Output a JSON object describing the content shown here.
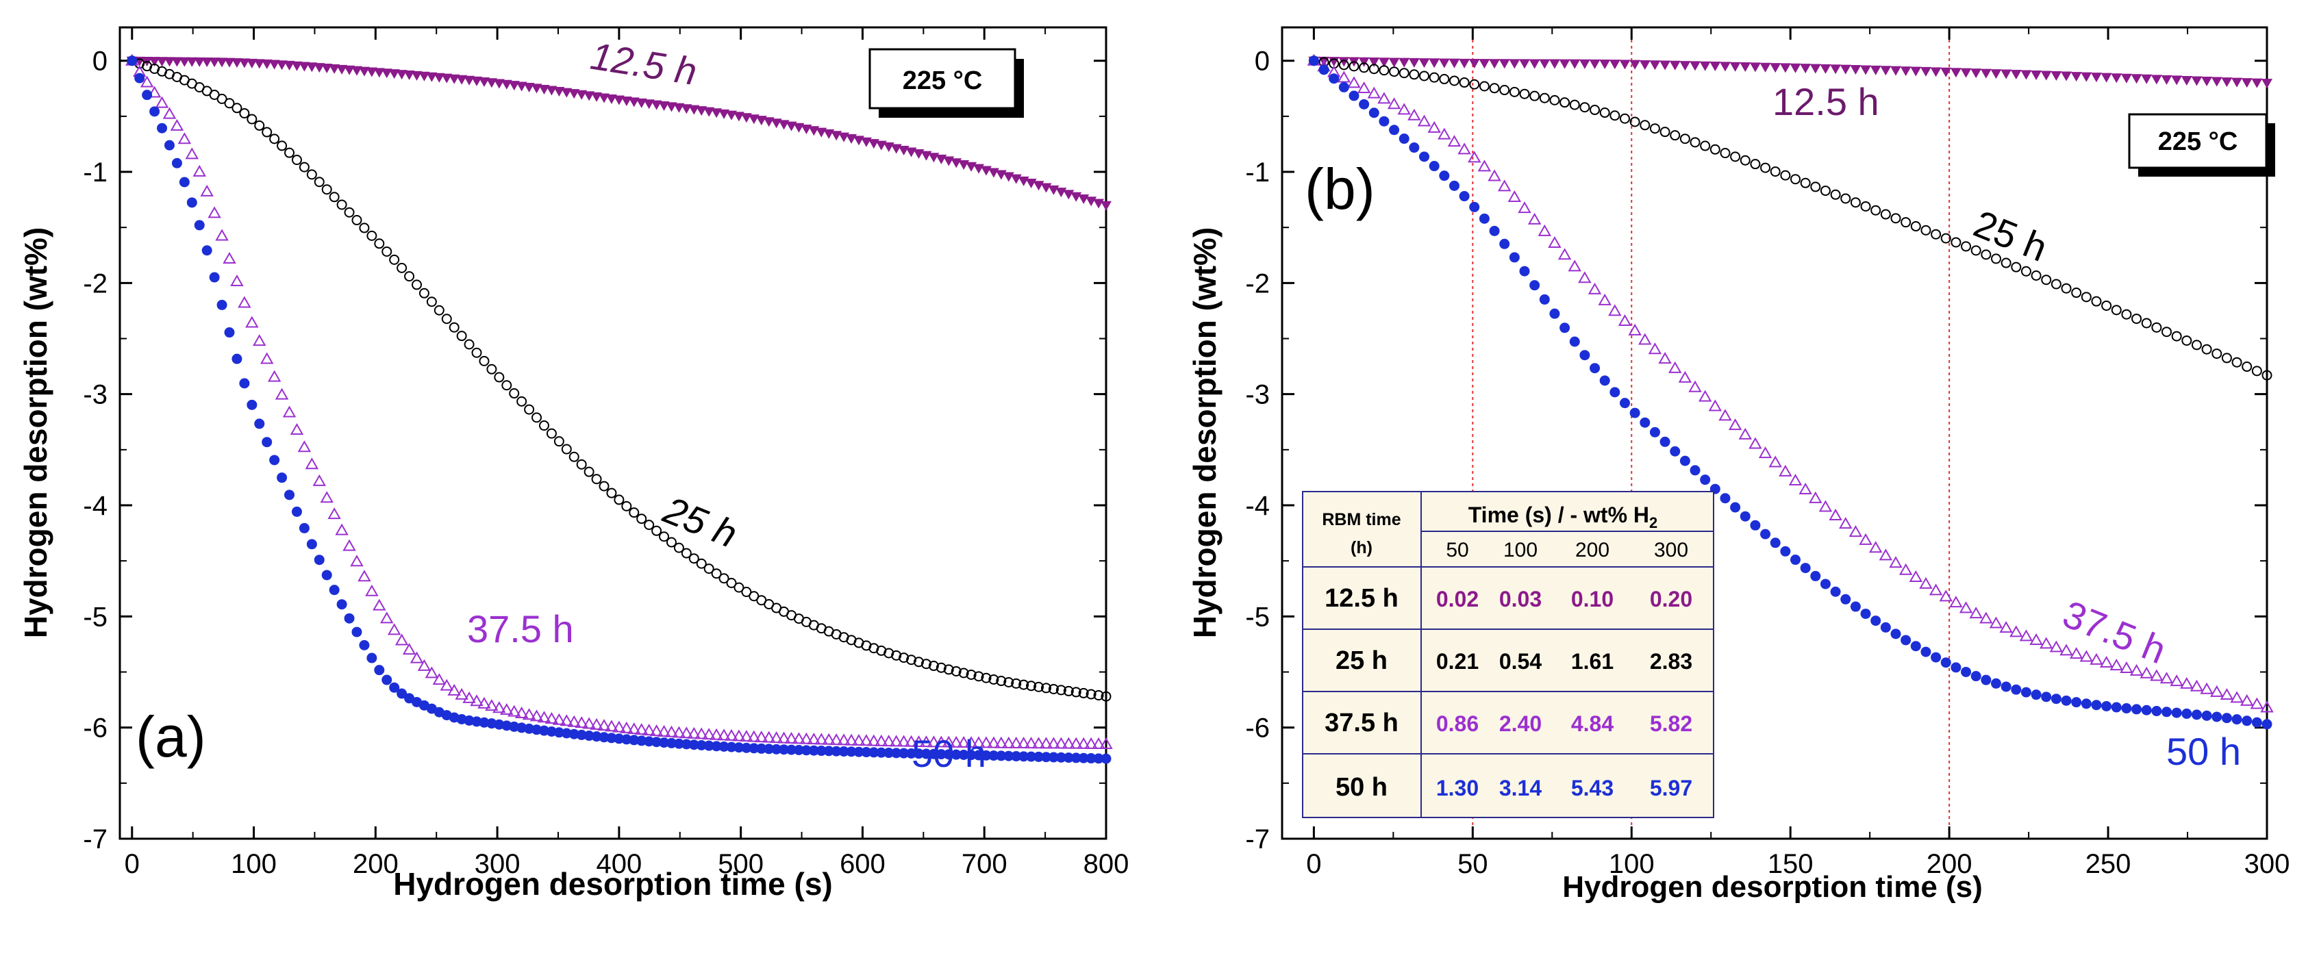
{
  "chart_data": [
    {
      "type": "scatter",
      "panel_label": "(a)",
      "xlabel": "Hydrogen desorption time (s)",
      "ylabel": "Hydrogen desorption (wt%)",
      "xlim": [
        -10,
        800
      ],
      "ylim": [
        -7,
        0.3
      ],
      "xticks": [
        0,
        100,
        200,
        300,
        400,
        500,
        600,
        700,
        800
      ],
      "yticks": [
        0,
        -1,
        -2,
        -3,
        -4,
        -5,
        -6,
        -7
      ],
      "temperature_label": "225 °C",
      "series": [
        {
          "name": "12.5 h",
          "marker": "triangle-down-filled",
          "color": "#8B1A8B",
          "points": [
            [
              0,
              0
            ],
            [
              100,
              -0.02
            ],
            [
              200,
              -0.1
            ],
            [
              300,
              -0.2
            ],
            [
              400,
              -0.35
            ],
            [
              500,
              -0.5
            ],
            [
              600,
              -0.72
            ],
            [
              700,
              -0.98
            ],
            [
              800,
              -1.3
            ]
          ]
        },
        {
          "name": "25 h",
          "marker": "circle-open",
          "color": "#000000",
          "points": [
            [
              0,
              0
            ],
            [
              50,
              -0.21
            ],
            [
              100,
              -0.54
            ],
            [
              200,
              -1.61
            ],
            [
              300,
              -2.83
            ],
            [
              400,
              -3.95
            ],
            [
              500,
              -4.75
            ],
            [
              600,
              -5.25
            ],
            [
              700,
              -5.55
            ],
            [
              800,
              -5.72
            ]
          ]
        },
        {
          "name": "37.5 h",
          "marker": "triangle-up-open",
          "color": "#9B30D0",
          "points": [
            [
              0,
              0
            ],
            [
              50,
              -0.86
            ],
            [
              100,
              -2.4
            ],
            [
              200,
              -4.84
            ],
            [
              250,
              -5.55
            ],
            [
              300,
              -5.82
            ],
            [
              400,
              -6.0
            ],
            [
              500,
              -6.08
            ],
            [
              600,
              -6.12
            ],
            [
              700,
              -6.14
            ],
            [
              800,
              -6.15
            ]
          ]
        },
        {
          "name": "50 h",
          "marker": "circle-filled",
          "color": "#1C2FD6",
          "points": [
            [
              0,
              0
            ],
            [
              50,
              -1.3
            ],
            [
              100,
              -3.14
            ],
            [
              200,
              -5.43
            ],
            [
              250,
              -5.85
            ],
            [
              300,
              -5.97
            ],
            [
              400,
              -6.1
            ],
            [
              500,
              -6.18
            ],
            [
              600,
              -6.22
            ],
            [
              700,
              -6.25
            ],
            [
              800,
              -6.28
            ]
          ]
        }
      ],
      "annotations": [
        {
          "text": "12.5 h",
          "color": "#6B1A6B"
        },
        {
          "text": "25 h",
          "color": "#000000"
        },
        {
          "text": "37.5 h",
          "color": "#9B30D0"
        },
        {
          "text": "50 h",
          "color": "#1C2FD6"
        }
      ]
    },
    {
      "type": "scatter",
      "panel_label": "(b)",
      "xlabel": "Hydrogen desorption time (s)",
      "ylabel": "Hydrogen desorption (wt%)",
      "xlim": [
        -10,
        300
      ],
      "ylim": [
        -7,
        0.3
      ],
      "xticks": [
        0,
        50,
        100,
        150,
        200,
        250,
        300
      ],
      "yticks": [
        0,
        -1,
        -2,
        -3,
        -4,
        -5,
        -6,
        -7
      ],
      "temperature_label": "225 °C",
      "reference_lines_x": [
        50,
        100,
        200
      ],
      "series": [
        {
          "name": "12.5 h",
          "marker": "triangle-down-filled",
          "color": "#8B1A8B",
          "points": [
            [
              0,
              0
            ],
            [
              50,
              -0.02
            ],
            [
              100,
              -0.03
            ],
            [
              200,
              -0.1
            ],
            [
              300,
              -0.2
            ]
          ]
        },
        {
          "name": "25 h",
          "marker": "circle-open",
          "color": "#000000",
          "points": [
            [
              0,
              0
            ],
            [
              50,
              -0.21
            ],
            [
              100,
              -0.54
            ],
            [
              200,
              -1.61
            ],
            [
              300,
              -2.83
            ]
          ]
        },
        {
          "name": "37.5 h",
          "marker": "triangle-up-open",
          "color": "#9B30D0",
          "points": [
            [
              0,
              0
            ],
            [
              50,
              -0.86
            ],
            [
              100,
              -2.4
            ],
            [
              200,
              -4.84
            ],
            [
              300,
              -5.82
            ]
          ]
        },
        {
          "name": "50 h",
          "marker": "circle-filled",
          "color": "#1C2FD6",
          "points": [
            [
              0,
              0
            ],
            [
              50,
              -1.3
            ],
            [
              100,
              -3.14
            ],
            [
              200,
              -5.43
            ],
            [
              300,
              -5.97
            ]
          ]
        }
      ],
      "annotations": [
        {
          "text": "12.5 h",
          "color": "#6B1A6B"
        },
        {
          "text": "25 h",
          "color": "#000000"
        },
        {
          "text": "37.5 h",
          "color": "#9B30D0"
        },
        {
          "text": "50 h",
          "color": "#1C2FD6"
        }
      ],
      "table": {
        "header_rbm": "RBM time",
        "header_rbm_unit": "(h)",
        "header_time": "Time (s) / - wt% H",
        "header_time_sub": "2",
        "time_columns": [
          "50",
          "100",
          "200",
          "300"
        ],
        "rows": [
          {
            "label": "12.5 h",
            "color": "#8B1A8B",
            "values": [
              "0.02",
              "0.03",
              "0.10",
              "0.20"
            ]
          },
          {
            "label": "25 h",
            "color": "#000000",
            "values": [
              "0.21",
              "0.54",
              "1.61",
              "2.83"
            ]
          },
          {
            "label": "37.5 h",
            "color": "#9B30D0",
            "values": [
              "0.86",
              "2.40",
              "4.84",
              "5.82"
            ]
          },
          {
            "label": "50 h",
            "color": "#1C2FD6",
            "values": [
              "1.30",
              "3.14",
              "5.43",
              "5.97"
            ]
          }
        ]
      }
    }
  ]
}
